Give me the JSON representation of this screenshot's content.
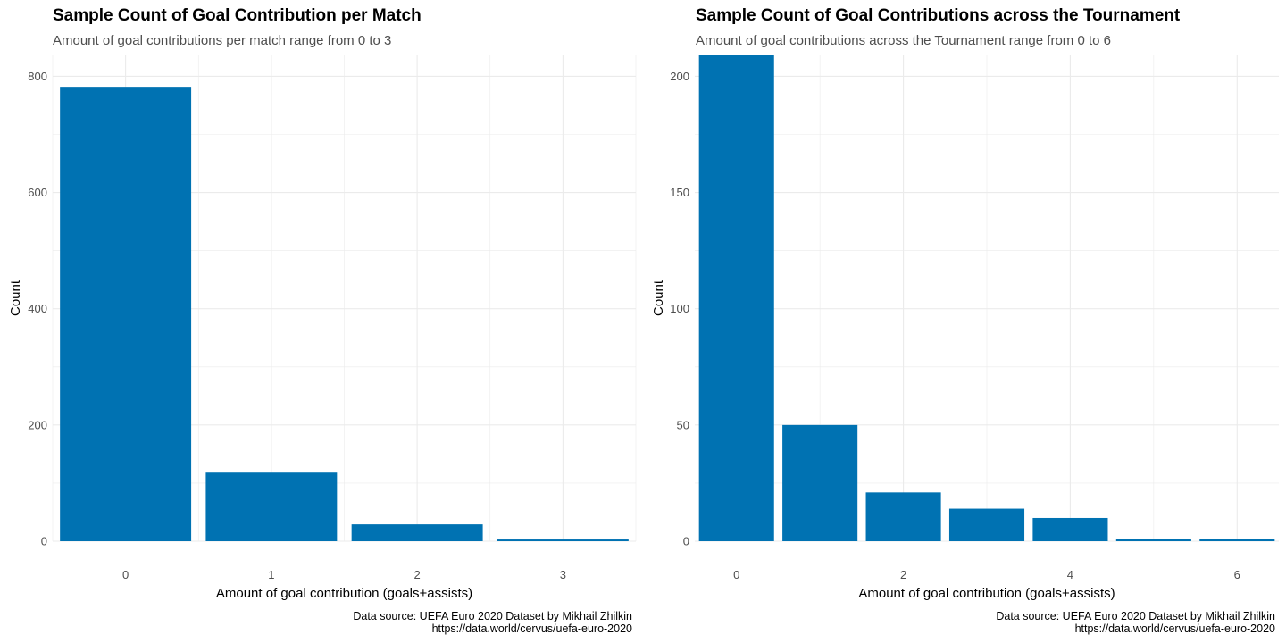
{
  "chart_data": [
    {
      "type": "bar",
      "title": "Sample Count of Goal Contribution per Match",
      "subtitle": "Amount of goal contributions per match range from 0 to 3",
      "xlabel": "Amount of goal contribution (goals+assists)",
      "ylabel": "Count",
      "categories": [
        0,
        1,
        2,
        3
      ],
      "values": [
        782,
        118,
        29,
        3
      ],
      "xticks": [
        0,
        1,
        2,
        3
      ],
      "yticks": [
        0,
        200,
        400,
        600,
        800
      ],
      "ylim": [
        0,
        800
      ],
      "grid": true,
      "bar_color": "#0072B2",
      "caption": [
        "Data source: UEFA Euro 2020 Dataset by Mikhail Zhilkin",
        "https://data.world/cervus/uefa-euro-2020"
      ]
    },
    {
      "type": "bar",
      "title": "Sample Count of Goal Contributions across the Tournament",
      "subtitle": "Amount of goal contributions across the Tournament range from 0 to 6",
      "xlabel": "Amount of goal contribution (goals+assists)",
      "ylabel": "Count",
      "categories": [
        0,
        1,
        2,
        3,
        4,
        5,
        6
      ],
      "values": [
        209,
        50,
        21,
        14,
        10,
        1,
        1
      ],
      "xticks": [
        0,
        2,
        4,
        6
      ],
      "yticks": [
        0,
        50,
        100,
        150,
        200
      ],
      "ylim": [
        0,
        200
      ],
      "grid": true,
      "bar_color": "#0072B2",
      "caption": [
        "Data source: UEFA Euro 2020 Dataset by Mikhail Zhilkin",
        "https://data.world/cervus/uefa-euro-2020"
      ]
    }
  ]
}
